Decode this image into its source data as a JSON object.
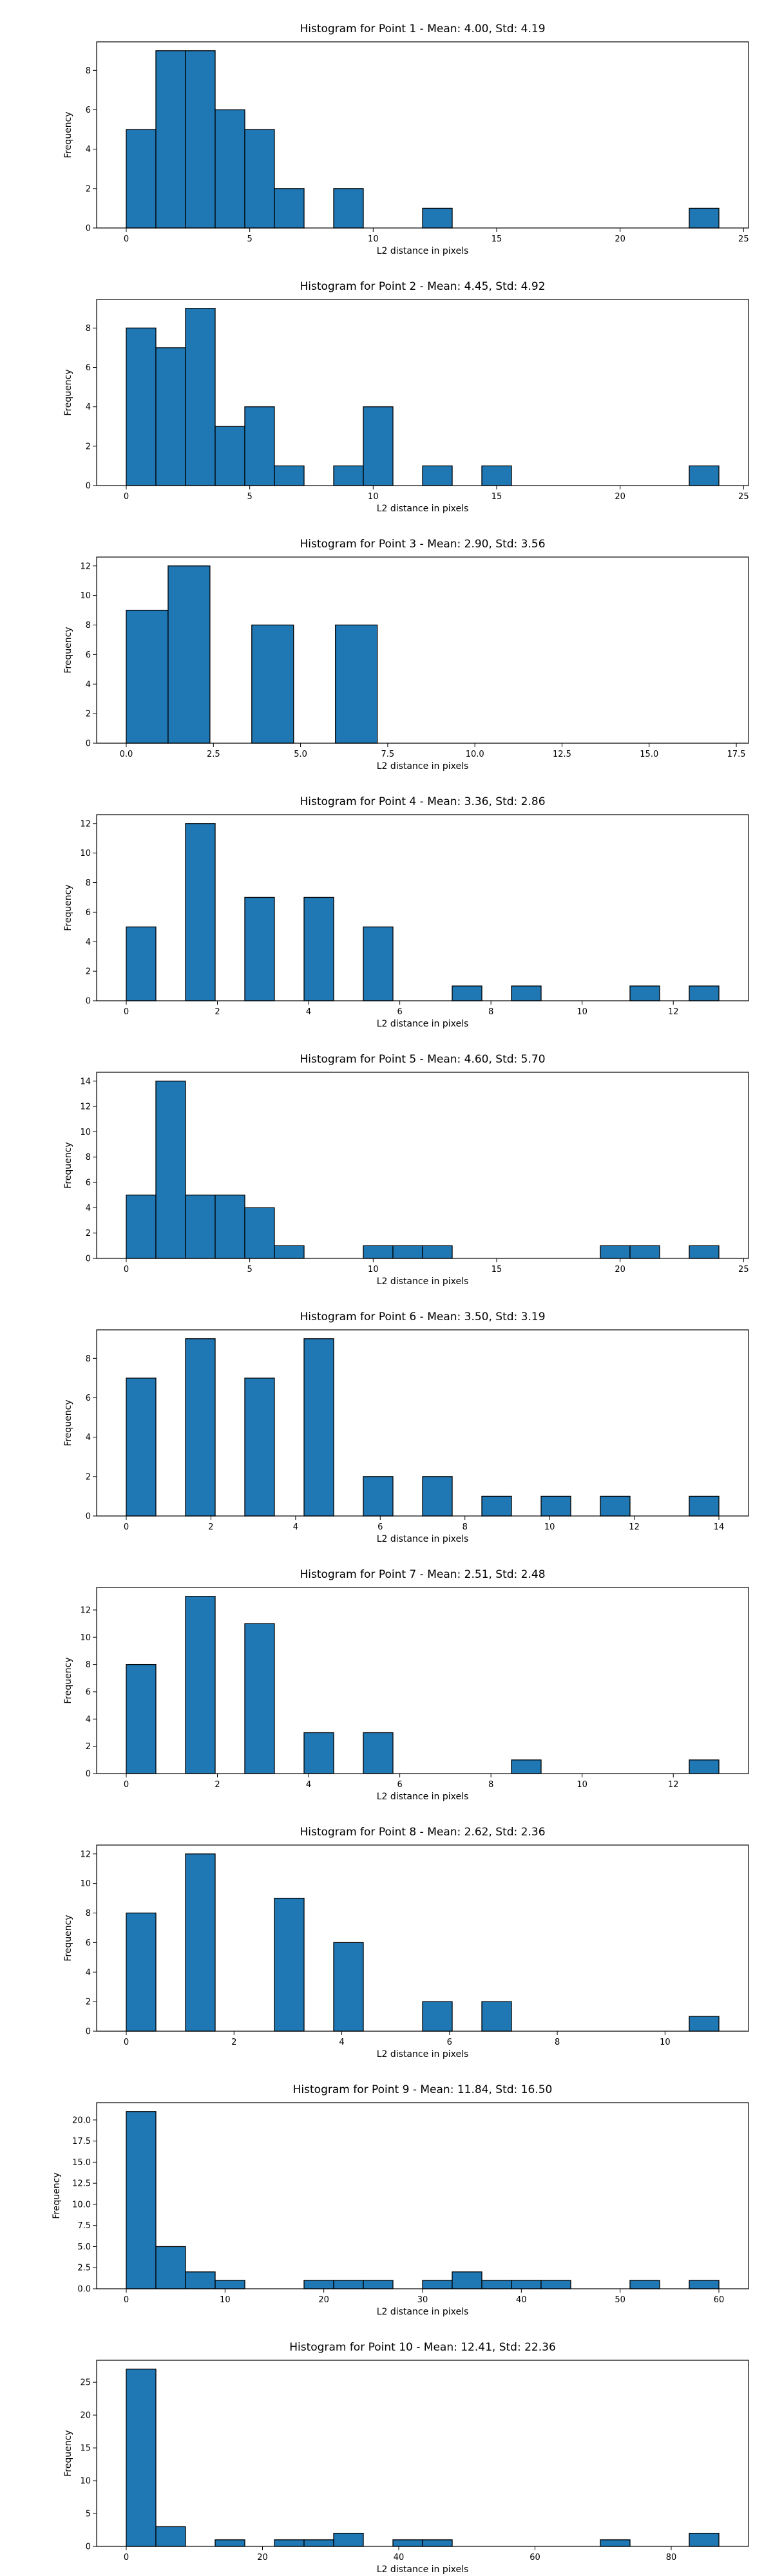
{
  "chart_data": [
    {
      "type": "bar",
      "title": "Histogram for Point 1 - Mean: 4.00, Std: 4.19",
      "xlabel": "L2 distance in pixels",
      "ylabel": "Frequency",
      "xlim": [
        -1.2,
        25.2
      ],
      "ylim": [
        0,
        9.45
      ],
      "bins": [
        [
          0,
          1.2
        ],
        [
          1.2,
          2.4
        ],
        [
          2.4,
          3.6
        ],
        [
          3.6,
          4.8
        ],
        [
          4.8,
          6.0
        ],
        [
          6.0,
          7.2
        ],
        [
          7.2,
          8.4
        ],
        [
          8.4,
          9.6
        ],
        [
          9.6,
          10.8
        ],
        [
          10.8,
          12.0
        ],
        [
          12.0,
          13.2
        ],
        [
          13.2,
          14.4
        ],
        [
          14.4,
          15.6
        ],
        [
          15.6,
          16.8
        ],
        [
          16.8,
          18.0
        ],
        [
          18.0,
          19.2
        ],
        [
          19.2,
          20.4
        ],
        [
          20.4,
          21.6
        ],
        [
          21.6,
          22.8
        ],
        [
          22.8,
          24.0
        ]
      ],
      "values": [
        5,
        9,
        9,
        6,
        5,
        2,
        0,
        2,
        0,
        0,
        1,
        0,
        0,
        0,
        0,
        0,
        0,
        0,
        0,
        1
      ],
      "xticks": [
        0,
        5,
        10,
        15,
        20,
        25
      ],
      "xticklabels": [
        "0",
        "5",
        "10",
        "15",
        "20",
        "25"
      ],
      "yticks": [
        0,
        2,
        4,
        6,
        8
      ],
      "yticklabels": [
        "0",
        "2",
        "4",
        "6",
        "8"
      ]
    },
    {
      "type": "bar",
      "title": "Histogram for Point 2 - Mean: 4.45, Std: 4.92",
      "xlabel": "L2 distance in pixels",
      "ylabel": "Frequency",
      "xlim": [
        -1.2,
        25.2
      ],
      "ylim": [
        0,
        9.45
      ],
      "bins": [
        [
          0,
          1.2
        ],
        [
          1.2,
          2.4
        ],
        [
          2.4,
          3.6
        ],
        [
          3.6,
          4.8
        ],
        [
          4.8,
          6.0
        ],
        [
          6.0,
          7.2
        ],
        [
          7.2,
          8.4
        ],
        [
          8.4,
          9.6
        ],
        [
          9.6,
          10.8
        ],
        [
          10.8,
          12.0
        ],
        [
          12.0,
          13.2
        ],
        [
          13.2,
          14.4
        ],
        [
          14.4,
          15.6
        ],
        [
          15.6,
          16.8
        ],
        [
          16.8,
          18.0
        ],
        [
          18.0,
          19.2
        ],
        [
          19.2,
          20.4
        ],
        [
          20.4,
          21.6
        ],
        [
          21.6,
          22.8
        ],
        [
          22.8,
          24.0
        ]
      ],
      "values": [
        8,
        7,
        9,
        3,
        4,
        1,
        0,
        1,
        4,
        0,
        1,
        0,
        1,
        0,
        0,
        0,
        0,
        0,
        0,
        1
      ],
      "xticks": [
        0,
        5,
        10,
        15,
        20,
        25
      ],
      "xticklabels": [
        "0",
        "5",
        "10",
        "15",
        "20",
        "25"
      ],
      "yticks": [
        0,
        2,
        4,
        6,
        8
      ],
      "yticklabels": [
        "0",
        "2",
        "4",
        "6",
        "8"
      ]
    },
    {
      "type": "bar",
      "title": "Histogram for Point 3 - Mean: 2.90, Std: 3.56",
      "xlabel": "L2 distance in pixels",
      "ylabel": "Frequency",
      "xlim": [
        -0.85,
        17.85
      ],
      "ylim": [
        0,
        12.6
      ],
      "bins": [
        [
          0,
          1.2
        ],
        [
          1.2,
          2.4
        ],
        [
          2.4,
          3.6
        ],
        [
          3.6,
          4.8
        ],
        [
          4.8,
          6.0
        ],
        [
          6.0,
          7.2
        ],
        [
          7.2,
          8.4
        ],
        [
          8.4,
          9.6
        ],
        [
          9.6,
          10.8
        ],
        [
          10.8,
          12.0
        ],
        [
          12.0,
          13.2
        ],
        [
          13.2,
          14.4
        ],
        [
          14.4,
          15.6
        ],
        [
          15.6,
          16.8
        ],
        [
          16.8,
          17.0
        ]
      ],
      "values": [
        9,
        12,
        0,
        8,
        0,
        8,
        0,
        0,
        0,
        0,
        0,
        0,
        0,
        0,
        0
      ],
      "xticks": [
        0,
        2.5,
        5,
        7.5,
        10,
        12.5,
        15,
        17.5
      ],
      "xticklabels": [
        "0.0",
        "2.5",
        "5.0",
        "7.5",
        "10.0",
        "12.5",
        "15.0",
        "17.5"
      ],
      "yticks": [
        0,
        2,
        4,
        6,
        8,
        10,
        12
      ],
      "yticklabels": [
        "0",
        "2",
        "4",
        "6",
        "8",
        "10",
        "12"
      ]
    },
    {
      "type": "bar",
      "title": "Histogram for Point 4 - Mean: 3.36, Std: 2.86",
      "xlabel": "L2 distance in pixels",
      "ylabel": "Frequency",
      "xlim": [
        -0.65,
        13.65
      ],
      "ylim": [
        0,
        12.6
      ],
      "bins": [
        [
          0,
          0.65
        ],
        [
          0.65,
          1.3
        ],
        [
          1.3,
          1.95
        ],
        [
          1.95,
          2.6
        ],
        [
          2.6,
          3.25
        ],
        [
          3.25,
          3.9
        ],
        [
          3.9,
          4.55
        ],
        [
          4.55,
          5.2
        ],
        [
          5.2,
          5.85
        ],
        [
          5.85,
          6.5
        ],
        [
          6.5,
          7.15
        ],
        [
          7.15,
          7.8
        ],
        [
          7.8,
          8.45
        ],
        [
          8.45,
          9.1
        ],
        [
          9.1,
          9.75
        ],
        [
          9.75,
          10.4
        ],
        [
          10.4,
          11.05
        ],
        [
          11.05,
          11.7
        ],
        [
          11.7,
          12.35
        ],
        [
          12.35,
          13.0
        ]
      ],
      "values": [
        5,
        0,
        12,
        0,
        7,
        0,
        7,
        0,
        5,
        0,
        0,
        1,
        0,
        1,
        0,
        0,
        0,
        1,
        0,
        1
      ],
      "xticks": [
        0,
        2,
        4,
        6,
        8,
        10,
        12
      ],
      "xticklabels": [
        "0",
        "2",
        "4",
        "6",
        "8",
        "10",
        "12"
      ],
      "yticks": [
        0,
        2,
        4,
        6,
        8,
        10,
        12
      ],
      "yticklabels": [
        "0",
        "2",
        "4",
        "6",
        "8",
        "10",
        "12"
      ]
    },
    {
      "type": "bar",
      "title": "Histogram for Point 5 - Mean: 4.60, Std: 5.70",
      "xlabel": "L2 distance in pixels",
      "ylabel": "Frequency",
      "xlim": [
        -1.2,
        25.2
      ],
      "ylim": [
        0,
        14.7
      ],
      "bins": [
        [
          0,
          1.2
        ],
        [
          1.2,
          2.4
        ],
        [
          2.4,
          3.6
        ],
        [
          3.6,
          4.8
        ],
        [
          4.8,
          6.0
        ],
        [
          6.0,
          7.2
        ],
        [
          7.2,
          8.4
        ],
        [
          8.4,
          9.6
        ],
        [
          9.6,
          10.8
        ],
        [
          10.8,
          12.0
        ],
        [
          12.0,
          13.2
        ],
        [
          13.2,
          14.4
        ],
        [
          14.4,
          15.6
        ],
        [
          15.6,
          16.8
        ],
        [
          16.8,
          18.0
        ],
        [
          18.0,
          19.2
        ],
        [
          19.2,
          20.4
        ],
        [
          20.4,
          21.6
        ],
        [
          21.6,
          22.8
        ],
        [
          22.8,
          24.0
        ]
      ],
      "values": [
        5,
        14,
        5,
        5,
        4,
        1,
        0,
        0,
        1,
        1,
        1,
        0,
        0,
        0,
        0,
        0,
        1,
        1,
        0,
        1
      ],
      "xticks": [
        0,
        5,
        10,
        15,
        20,
        25
      ],
      "xticklabels": [
        "0",
        "5",
        "10",
        "15",
        "20",
        "25"
      ],
      "yticks": [
        0,
        2,
        4,
        6,
        8,
        10,
        12,
        14
      ],
      "yticklabels": [
        "0",
        "2",
        "4",
        "6",
        "8",
        "10",
        "12",
        "14"
      ]
    },
    {
      "type": "bar",
      "title": "Histogram for Point 6 - Mean: 3.50, Std: 3.19",
      "xlabel": "L2 distance in pixels",
      "ylabel": "Frequency",
      "xlim": [
        -0.7,
        14.7
      ],
      "ylim": [
        0,
        9.45
      ],
      "bins": [
        [
          0,
          0.7
        ],
        [
          0.7,
          1.4
        ],
        [
          1.4,
          2.1
        ],
        [
          2.1,
          2.8
        ],
        [
          2.8,
          3.5
        ],
        [
          3.5,
          4.2
        ],
        [
          4.2,
          4.9
        ],
        [
          4.9,
          5.6
        ],
        [
          5.6,
          6.3
        ],
        [
          6.3,
          7.0
        ],
        [
          7.0,
          7.7
        ],
        [
          7.7,
          8.4
        ],
        [
          8.4,
          9.1
        ],
        [
          9.1,
          9.8
        ],
        [
          9.8,
          10.5
        ],
        [
          10.5,
          11.2
        ],
        [
          11.2,
          11.9
        ],
        [
          11.9,
          12.6
        ],
        [
          12.6,
          13.3
        ],
        [
          13.3,
          14.0
        ]
      ],
      "values": [
        7,
        0,
        9,
        0,
        7,
        0,
        9,
        0,
        2,
        0,
        2,
        0,
        1,
        0,
        1,
        0,
        1,
        0,
        0,
        1
      ],
      "xticks": [
        0,
        2,
        4,
        6,
        8,
        10,
        12,
        14
      ],
      "xticklabels": [
        "0",
        "2",
        "4",
        "6",
        "8",
        "10",
        "12",
        "14"
      ],
      "yticks": [
        0,
        2,
        4,
        6,
        8
      ],
      "yticklabels": [
        "0",
        "2",
        "4",
        "6",
        "8"
      ]
    },
    {
      "type": "bar",
      "title": "Histogram for Point 7 - Mean: 2.51, Std: 2.48",
      "xlabel": "L2 distance in pixels",
      "ylabel": "Frequency",
      "xlim": [
        -0.65,
        13.65
      ],
      "ylim": [
        0,
        13.65
      ],
      "bins": [
        [
          0,
          0.65
        ],
        [
          0.65,
          1.3
        ],
        [
          1.3,
          1.95
        ],
        [
          1.95,
          2.6
        ],
        [
          2.6,
          3.25
        ],
        [
          3.25,
          3.9
        ],
        [
          3.9,
          4.55
        ],
        [
          4.55,
          5.2
        ],
        [
          5.2,
          5.85
        ],
        [
          5.85,
          6.5
        ],
        [
          6.5,
          7.15
        ],
        [
          7.15,
          7.8
        ],
        [
          7.8,
          8.45
        ],
        [
          8.45,
          9.1
        ],
        [
          9.1,
          9.75
        ],
        [
          9.75,
          10.4
        ],
        [
          10.4,
          11.05
        ],
        [
          11.05,
          11.7
        ],
        [
          11.7,
          12.35
        ],
        [
          12.35,
          13.0
        ]
      ],
      "values": [
        8,
        0,
        13,
        0,
        11,
        0,
        3,
        0,
        3,
        0,
        0,
        0,
        0,
        1,
        0,
        0,
        0,
        0,
        0,
        1
      ],
      "xticks": [
        0,
        2,
        4,
        6,
        8,
        10,
        12
      ],
      "xticklabels": [
        "0",
        "2",
        "4",
        "6",
        "8",
        "10",
        "12"
      ],
      "yticks": [
        0,
        2,
        4,
        6,
        8,
        10,
        12
      ],
      "yticklabels": [
        "0",
        "2",
        "4",
        "6",
        "8",
        "10",
        "12"
      ]
    },
    {
      "type": "bar",
      "title": "Histogram for Point 8 - Mean: 2.62, Std: 2.36",
      "xlabel": "L2 distance in pixels",
      "ylabel": "Frequency",
      "xlim": [
        -0.55,
        11.55
      ],
      "ylim": [
        0,
        12.6
      ],
      "bins": [
        [
          0,
          0.55
        ],
        [
          0.55,
          1.1
        ],
        [
          1.1,
          1.65
        ],
        [
          1.65,
          2.2
        ],
        [
          2.2,
          2.75
        ],
        [
          2.75,
          3.3
        ],
        [
          3.3,
          3.85
        ],
        [
          3.85,
          4.4
        ],
        [
          4.4,
          4.95
        ],
        [
          4.95,
          5.5
        ],
        [
          5.5,
          6.05
        ],
        [
          6.05,
          6.6
        ],
        [
          6.6,
          7.15
        ],
        [
          7.15,
          7.7
        ],
        [
          7.7,
          8.25
        ],
        [
          8.25,
          8.8
        ],
        [
          8.8,
          9.35
        ],
        [
          9.35,
          9.9
        ],
        [
          9.9,
          10.45
        ],
        [
          10.45,
          11.0
        ]
      ],
      "values": [
        8,
        0,
        12,
        0,
        0,
        9,
        0,
        6,
        0,
        0,
        2,
        0,
        2,
        0,
        0,
        0,
        0,
        0,
        0,
        1
      ],
      "xticks": [
        0,
        2,
        4,
        6,
        8,
        10
      ],
      "xticklabels": [
        "0",
        "2",
        "4",
        "6",
        "8",
        "10"
      ],
      "yticks": [
        0,
        2,
        4,
        6,
        8,
        10,
        12
      ],
      "yticklabels": [
        "0",
        "2",
        "4",
        "6",
        "8",
        "10",
        "12"
      ]
    },
    {
      "type": "bar",
      "title": "Histogram for Point 9 - Mean: 11.84, Std: 16.50",
      "xlabel": "L2 distance in pixels",
      "ylabel": "Frequency",
      "xlim": [
        -3.0,
        63.0
      ],
      "ylim": [
        0,
        22.05
      ],
      "bins": [
        [
          0,
          3
        ],
        [
          3,
          6
        ],
        [
          6,
          9
        ],
        [
          9,
          12
        ],
        [
          12,
          15
        ],
        [
          15,
          18
        ],
        [
          18,
          21
        ],
        [
          21,
          24
        ],
        [
          24,
          27
        ],
        [
          27,
          30
        ],
        [
          30,
          33
        ],
        [
          33,
          36
        ],
        [
          36,
          39
        ],
        [
          39,
          42
        ],
        [
          42,
          45
        ],
        [
          45,
          48
        ],
        [
          48,
          51
        ],
        [
          51,
          54
        ],
        [
          54,
          57
        ],
        [
          57,
          60
        ]
      ],
      "values": [
        21,
        5,
        2,
        1,
        0,
        0,
        1,
        1,
        1,
        0,
        1,
        2,
        1,
        1,
        1,
        0,
        0,
        1,
        0,
        1
      ],
      "xticks": [
        0,
        10,
        20,
        30,
        40,
        50,
        60
      ],
      "xticklabels": [
        "0",
        "10",
        "20",
        "30",
        "40",
        "50",
        "60"
      ],
      "yticks": [
        0,
        2.5,
        5,
        7.5,
        10,
        12.5,
        15,
        17.5,
        20
      ],
      "yticklabels": [
        "0.0",
        "2.5",
        "5.0",
        "7.5",
        "10.0",
        "12.5",
        "15.0",
        "17.5",
        "20.0"
      ]
    },
    {
      "type": "bar",
      "title": "Histogram for Point 10 - Mean: 12.41, Std: 22.36",
      "xlabel": "L2 distance in pixels",
      "ylabel": "Frequency",
      "xlim": [
        -4.35,
        91.35
      ],
      "ylim": [
        0,
        28.35
      ],
      "bins": [
        [
          0,
          4.35
        ],
        [
          4.35,
          8.7
        ],
        [
          8.7,
          13.05
        ],
        [
          13.05,
          17.4
        ],
        [
          17.4,
          21.75
        ],
        [
          21.75,
          26.1
        ],
        [
          26.1,
          30.45
        ],
        [
          30.45,
          34.8
        ],
        [
          34.8,
          39.15
        ],
        [
          39.15,
          43.5
        ],
        [
          43.5,
          47.85
        ],
        [
          47.85,
          52.2
        ],
        [
          52.2,
          56.55
        ],
        [
          56.55,
          60.9
        ],
        [
          60.9,
          65.25
        ],
        [
          65.25,
          69.6
        ],
        [
          69.6,
          73.95
        ],
        [
          73.95,
          78.3
        ],
        [
          78.3,
          82.65
        ],
        [
          82.65,
          87.0
        ]
      ],
      "values": [
        27,
        3,
        0,
        1,
        0,
        1,
        1,
        2,
        0,
        1,
        1,
        0,
        0,
        0,
        0,
        0,
        1,
        0,
        0,
        2
      ],
      "xticks": [
        0,
        20,
        40,
        60,
        80
      ],
      "xticklabels": [
        "0",
        "20",
        "40",
        "60",
        "80"
      ],
      "yticks": [
        0,
        5,
        10,
        15,
        20,
        25
      ],
      "yticklabels": [
        "0",
        "5",
        "10",
        "15",
        "20",
        "25"
      ]
    }
  ]
}
